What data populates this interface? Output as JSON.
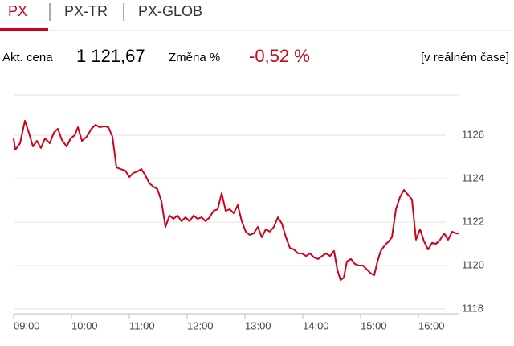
{
  "tabs": [
    "PX",
    "PX-TR",
    "PX-GLOB"
  ],
  "quote": {
    "price_label": "Akt. cena",
    "price": "1 121,67",
    "change_label": "Změna %",
    "change": "-0,52 %",
    "mode": "[v reálném čase]"
  },
  "chart_data": {
    "type": "line",
    "color": "#d0021b",
    "grid": true,
    "x": [
      9.0,
      9.028,
      9.111,
      9.194,
      9.264,
      9.333,
      9.403,
      9.472,
      9.542,
      9.625,
      9.694,
      9.764,
      9.833,
      9.917,
      9.986,
      10.056,
      10.111,
      10.181,
      10.264,
      10.347,
      10.417,
      10.486,
      10.569,
      10.639,
      10.708,
      10.778,
      10.847,
      10.931,
      11.0,
      11.069,
      11.139,
      11.208,
      11.278,
      11.347,
      11.417,
      11.486,
      11.556,
      11.625,
      11.694,
      11.764,
      11.833,
      11.903,
      11.972,
      12.042,
      12.111,
      12.181,
      12.25,
      12.319,
      12.389,
      12.458,
      12.528,
      12.597,
      12.667,
      12.736,
      12.806,
      12.875,
      12.944,
      13.014,
      13.083,
      13.153,
      13.222,
      13.292,
      13.361,
      13.431,
      13.5,
      13.569,
      13.639,
      13.708,
      13.778,
      13.847,
      13.917,
      13.986,
      14.056,
      14.125,
      14.194,
      14.264,
      14.333,
      14.403,
      14.472,
      14.542,
      14.597,
      14.653,
      14.708,
      14.764,
      14.833,
      14.903,
      14.972,
      15.042,
      15.111,
      15.181,
      15.236,
      15.292,
      15.347,
      15.417,
      15.486,
      15.542,
      15.611,
      15.681,
      15.75,
      15.819,
      15.889,
      15.958,
      16.028,
      16.097,
      16.167,
      16.236,
      16.306,
      16.375,
      16.444,
      16.514,
      16.583,
      16.653,
      16.708
    ],
    "values": [
      1125.85,
      1125.33,
      1125.63,
      1126.67,
      1126.11,
      1125.48,
      1125.74,
      1125.41,
      1125.85,
      1125.63,
      1126.11,
      1126.3,
      1125.78,
      1125.48,
      1125.85,
      1126.0,
      1126.37,
      1125.74,
      1125.93,
      1126.3,
      1126.48,
      1126.37,
      1126.41,
      1126.37,
      1125.93,
      1124.52,
      1124.44,
      1124.37,
      1124.07,
      1124.26,
      1124.33,
      1124.44,
      1124.15,
      1123.78,
      1123.63,
      1123.52,
      1122.96,
      1121.78,
      1122.3,
      1122.15,
      1122.3,
      1122.04,
      1122.22,
      1122.04,
      1122.3,
      1122.15,
      1122.22,
      1122.04,
      1122.22,
      1122.52,
      1122.59,
      1123.33,
      1122.52,
      1122.59,
      1122.41,
      1122.78,
      1122.04,
      1121.56,
      1121.41,
      1121.48,
      1121.78,
      1121.3,
      1121.67,
      1121.56,
      1121.78,
      1122.22,
      1121.93,
      1121.3,
      1120.81,
      1120.74,
      1120.56,
      1120.56,
      1120.44,
      1120.56,
      1120.37,
      1120.3,
      1120.44,
      1120.56,
      1120.44,
      1120.67,
      1119.81,
      1119.33,
      1119.44,
      1120.19,
      1120.3,
      1120.07,
      1120.0,
      1120.0,
      1119.81,
      1119.63,
      1119.56,
      1120.19,
      1120.67,
      1120.93,
      1121.11,
      1121.3,
      1122.59,
      1123.15,
      1123.48,
      1123.26,
      1123.04,
      1121.19,
      1121.67,
      1121.11,
      1120.74,
      1121.04,
      1121.0,
      1121.19,
      1121.48,
      1121.19,
      1121.56,
      1121.48,
      1121.48
    ],
    "xlim": [
      9,
      16.75
    ],
    "xticks": [
      {
        "value": 9,
        "label": "09:00"
      },
      {
        "value": 10,
        "label": "10:00"
      },
      {
        "value": 11,
        "label": "11:00"
      },
      {
        "value": 12,
        "label": "12:00"
      },
      {
        "value": 13,
        "label": "13:00"
      },
      {
        "value": 14,
        "label": "14:00"
      },
      {
        "value": 15,
        "label": "15:00"
      },
      {
        "value": 16,
        "label": "16:00"
      }
    ],
    "ylim": [
      1117.78,
      1127.85
    ],
    "yticks": [
      1118,
      1120,
      1122,
      1124,
      1126
    ]
  }
}
